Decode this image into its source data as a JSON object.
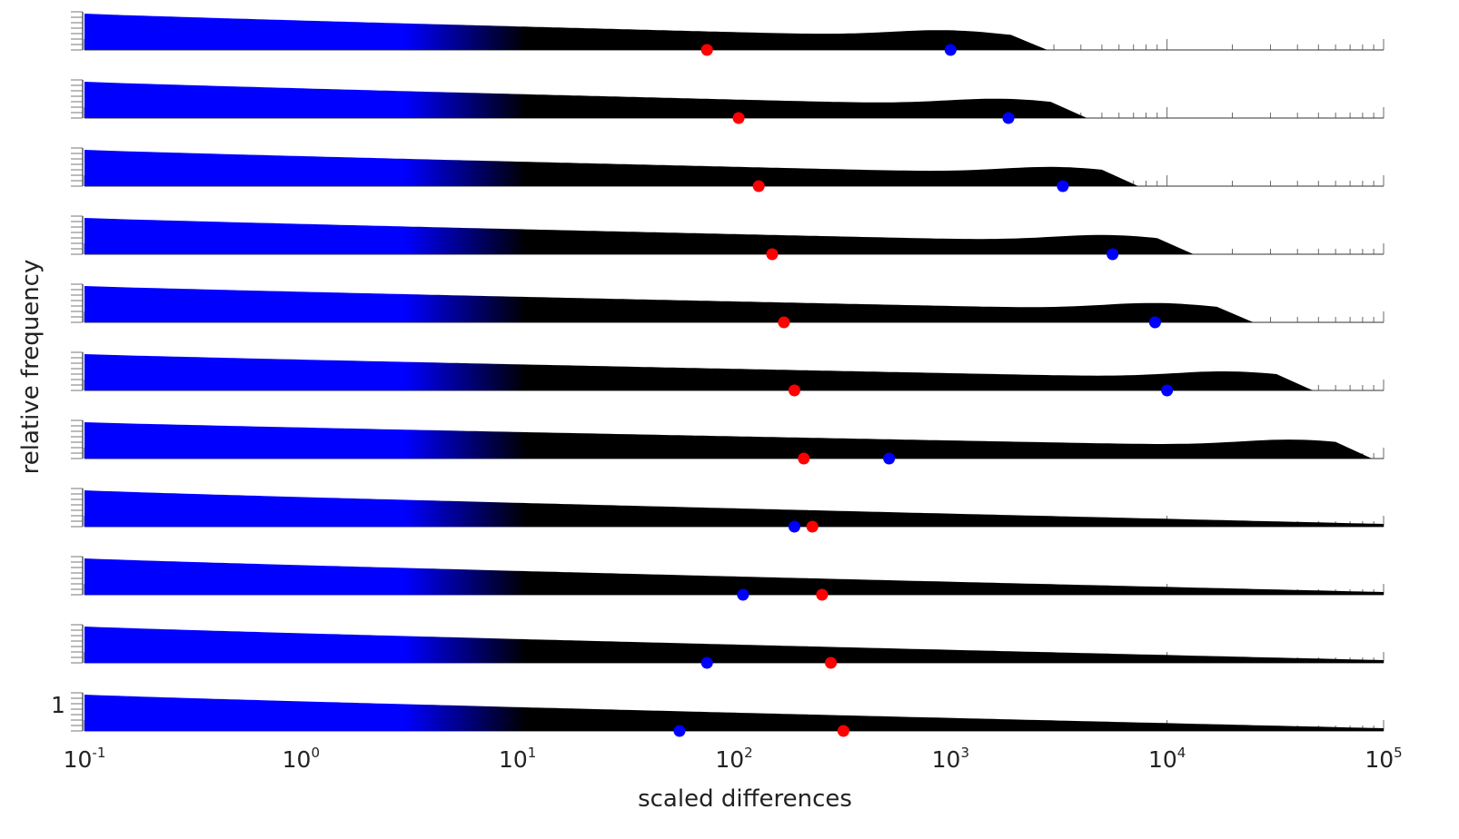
{
  "chart_data": {
    "type": "area",
    "xlabel": "scaled differences",
    "ylabel": "relative frequency",
    "x_scale": "log",
    "xlim": [
      0.1,
      100000
    ],
    "x_ticks": [
      {
        "base": "10",
        "exp": "-1"
      },
      {
        "base": "10",
        "exp": "0"
      },
      {
        "base": "10",
        "exp": "1"
      },
      {
        "base": "10",
        "exp": "2"
      },
      {
        "base": "10",
        "exp": "3"
      },
      {
        "base": "10",
        "exp": "4"
      },
      {
        "base": "10",
        "exp": "5"
      }
    ],
    "y_tick_label": "1",
    "fill_colors": {
      "low": "#0000ff",
      "high": "#000000",
      "red_marker": "#ff0000",
      "blue_marker": "#0000ff"
    },
    "color_transition_x": [
      3,
      11
    ],
    "panels": [
      {
        "tail_end": 1900,
        "bump_center": 1000,
        "red_marker": 75,
        "blue_marker": 1000
      },
      {
        "tail_end": 2900,
        "bump_center": 1800,
        "red_marker": 105,
        "blue_marker": 1850
      },
      {
        "tail_end": 5000,
        "bump_center": 3200,
        "red_marker": 130,
        "blue_marker": 3300
      },
      {
        "tail_end": 9000,
        "bump_center": 5500,
        "red_marker": 150,
        "blue_marker": 5600
      },
      {
        "tail_end": 17000,
        "bump_center": 9500,
        "red_marker": 170,
        "blue_marker": 8800
      },
      {
        "tail_end": 32000,
        "bump_center": 20000,
        "red_marker": 190,
        "blue_marker": 10000
      },
      {
        "tail_end": 60000,
        "bump_center": 40000,
        "red_marker": 210,
        "blue_marker": 520
      },
      {
        "tail_end": 100000,
        "bump_center": null,
        "red_marker": 230,
        "blue_marker": 190
      },
      {
        "tail_end": 100000,
        "bump_center": null,
        "red_marker": 255,
        "blue_marker": 110
      },
      {
        "tail_end": 100000,
        "bump_center": null,
        "red_marker": 280,
        "blue_marker": 75
      },
      {
        "tail_end": 100000,
        "bump_center": null,
        "red_marker": 320,
        "blue_marker": 56
      }
    ]
  }
}
